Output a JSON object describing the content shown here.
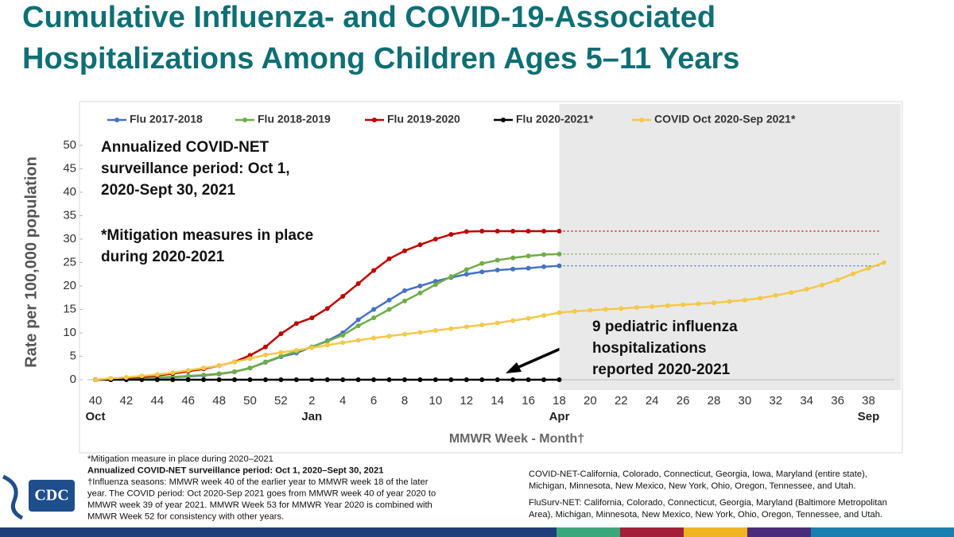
{
  "title": [
    "Cumulative Influenza- and COVID-19-Associated",
    "Hospitalizations Among Children Ages 5–11 Years"
  ],
  "chart_data": {
    "type": "line",
    "y_label": "Rate per 100,000 population",
    "x_label": "MMWR Week - Month†",
    "categories": [
      "40",
      null,
      "42",
      null,
      "44",
      null,
      "46",
      null,
      "48",
      null,
      "50",
      null,
      "52",
      null,
      "2",
      null,
      "4",
      null,
      "6",
      null,
      "8",
      null,
      "10",
      null,
      "12",
      null,
      "14",
      null,
      "16",
      null,
      "18",
      null,
      "20",
      null,
      "22",
      null,
      "24",
      null,
      "26",
      null,
      "28",
      null,
      "30",
      null,
      "32",
      null,
      "34",
      null,
      "36",
      null,
      "38",
      null
    ],
    "months": [
      "Oct",
      null,
      null,
      null,
      null,
      null,
      null,
      null,
      null,
      null,
      null,
      null,
      null,
      null,
      "Jan",
      null,
      null,
      null,
      null,
      null,
      null,
      null,
      null,
      null,
      null,
      null,
      null,
      null,
      null,
      null,
      "Apr",
      null,
      null,
      null,
      null,
      null,
      null,
      null,
      null,
      null,
      null,
      null,
      null,
      null,
      null,
      null,
      null,
      null,
      null,
      null,
      "Sep",
      null
    ],
    "ylim": [
      0,
      50
    ],
    "yticks": [
      0,
      5,
      10,
      15,
      20,
      25,
      30,
      35,
      40,
      45,
      50
    ],
    "grid": false,
    "legend": "top",
    "series": [
      {
        "name": "Flu 2017-2018",
        "color": "#4472c4",
        "dotted_extension": true,
        "values": [
          0,
          0.1,
          0.2,
          0.3,
          0.4,
          0.5,
          0.7,
          0.9,
          1.2,
          1.7,
          2.5,
          3.7,
          4.9,
          5.7,
          7.0,
          8.3,
          10.0,
          12.8,
          15.0,
          17.0,
          19.0,
          20.0,
          21.0,
          21.8,
          22.5,
          23.0,
          23.4,
          23.6,
          23.8,
          24.1,
          24.3,
          null,
          null,
          null,
          null,
          null,
          null,
          null,
          null,
          null,
          null,
          null,
          null,
          null,
          null,
          null,
          null,
          null,
          null,
          null,
          null,
          null
        ]
      },
      {
        "name": "Flu 2018-2019",
        "color": "#70ad47",
        "dotted_extension": true,
        "values": [
          0,
          0.1,
          0.2,
          0.3,
          0.5,
          0.6,
          0.8,
          1.0,
          1.3,
          1.7,
          2.5,
          3.8,
          5.0,
          6.0,
          7.0,
          8.2,
          9.5,
          11.5,
          13.2,
          15.0,
          16.8,
          18.5,
          20.3,
          22.0,
          23.5,
          24.8,
          25.5,
          26.0,
          26.4,
          26.7,
          26.8,
          null,
          null,
          null,
          null,
          null,
          null,
          null,
          null,
          null,
          null,
          null,
          null,
          null,
          null,
          null,
          null,
          null,
          null,
          null,
          null,
          null
        ]
      },
      {
        "name": "Flu 2019-2020",
        "color": "#c00000",
        "dotted_extension": true,
        "values": [
          0,
          0.2,
          0.4,
          0.6,
          0.9,
          1.3,
          1.8,
          2.3,
          3.0,
          3.8,
          5.2,
          7.0,
          9.8,
          12.0,
          13.2,
          15.2,
          17.8,
          20.5,
          23.3,
          25.8,
          27.5,
          28.8,
          30.0,
          31.0,
          31.6,
          31.7,
          31.7,
          31.7,
          31.7,
          31.7,
          31.7,
          null,
          null,
          null,
          null,
          null,
          null,
          null,
          null,
          null,
          null,
          null,
          null,
          null,
          null,
          null,
          null,
          null,
          null,
          null,
          null,
          null
        ]
      },
      {
        "name": "Flu 2020-2021*",
        "color": "#000000",
        "dotted_extension": false,
        "values": [
          0,
          0,
          0,
          0,
          0,
          0,
          0,
          0,
          0,
          0,
          0,
          0,
          0,
          0,
          0,
          0,
          0,
          0,
          0,
          0,
          0,
          0,
          0,
          0,
          0,
          0,
          0,
          0,
          0,
          0,
          0,
          null,
          null,
          null,
          null,
          null,
          null,
          null,
          null,
          null,
          null,
          null,
          null,
          null,
          null,
          null,
          null,
          null,
          null,
          null,
          null,
          null
        ]
      },
      {
        "name": "COVID Oct 2020-Sep 2021*",
        "color": "#f4c84a",
        "dotted_extension": false,
        "values": [
          0,
          0.3,
          0.5,
          0.8,
          1.1,
          1.5,
          2.0,
          2.5,
          3.0,
          3.8,
          4.5,
          5.3,
          5.8,
          6.3,
          6.8,
          7.4,
          7.9,
          8.4,
          8.9,
          9.3,
          9.7,
          10.1,
          10.5,
          10.9,
          11.3,
          11.7,
          12.1,
          12.6,
          13.1,
          13.7,
          14.3,
          14.6,
          14.8,
          15.0,
          15.2,
          15.4,
          15.6,
          15.8,
          16.0,
          16.2,
          16.4,
          16.7,
          17.0,
          17.4,
          18.0,
          18.6,
          19.3,
          20.2,
          21.3,
          22.6,
          23.8,
          25.0
        ]
      }
    ],
    "annotations": [
      [
        "Annualized COVID-NET",
        "surveillance period: Oct 1,",
        "2020-Sept 30, 2021"
      ],
      [
        "*Mitigation measures in place",
        "during 2020-2021"
      ],
      [
        "9 pediatric influenza",
        "hospitalizations",
        "reported 2020-2021"
      ]
    ]
  },
  "footnotes_left": [
    "*Mitigation measure in place during 2020–2021",
    "Annualized COVID-NET surveillance period: Oct 1, 2020–Sept 30, 2021",
    "†Influenza seasons: MMWR week 40 of the earlier year to MMWR week 18 of the later",
    "year. The COVID period: Oct 2020-Sep 2021 goes from MMWR week 40 of year 2020 to",
    "MMWR week 39 of year 2021. MMWR Week 53 for MMWR Year 2020 is combined with",
    "MMWR Week 52 for consistency with other years."
  ],
  "footnotes_right": [
    "COVID-NET-California, Colorado, Connecticut, Georgia, Iowa, Maryland (entire state),",
    "Michigan, Minnesota, New Mexico, New York, Ohio, Oregon, Tennessee, and Utah.",
    "FluSurv-NET: California, Colorado, Connecticut, Georgia, Maryland (Baltimore Metropolitan",
    "Area), Michigan, Minnesota, New Mexico, New York, Ohio, Oregon, Tennessee, and Utah."
  ],
  "logo_text": "CDC"
}
